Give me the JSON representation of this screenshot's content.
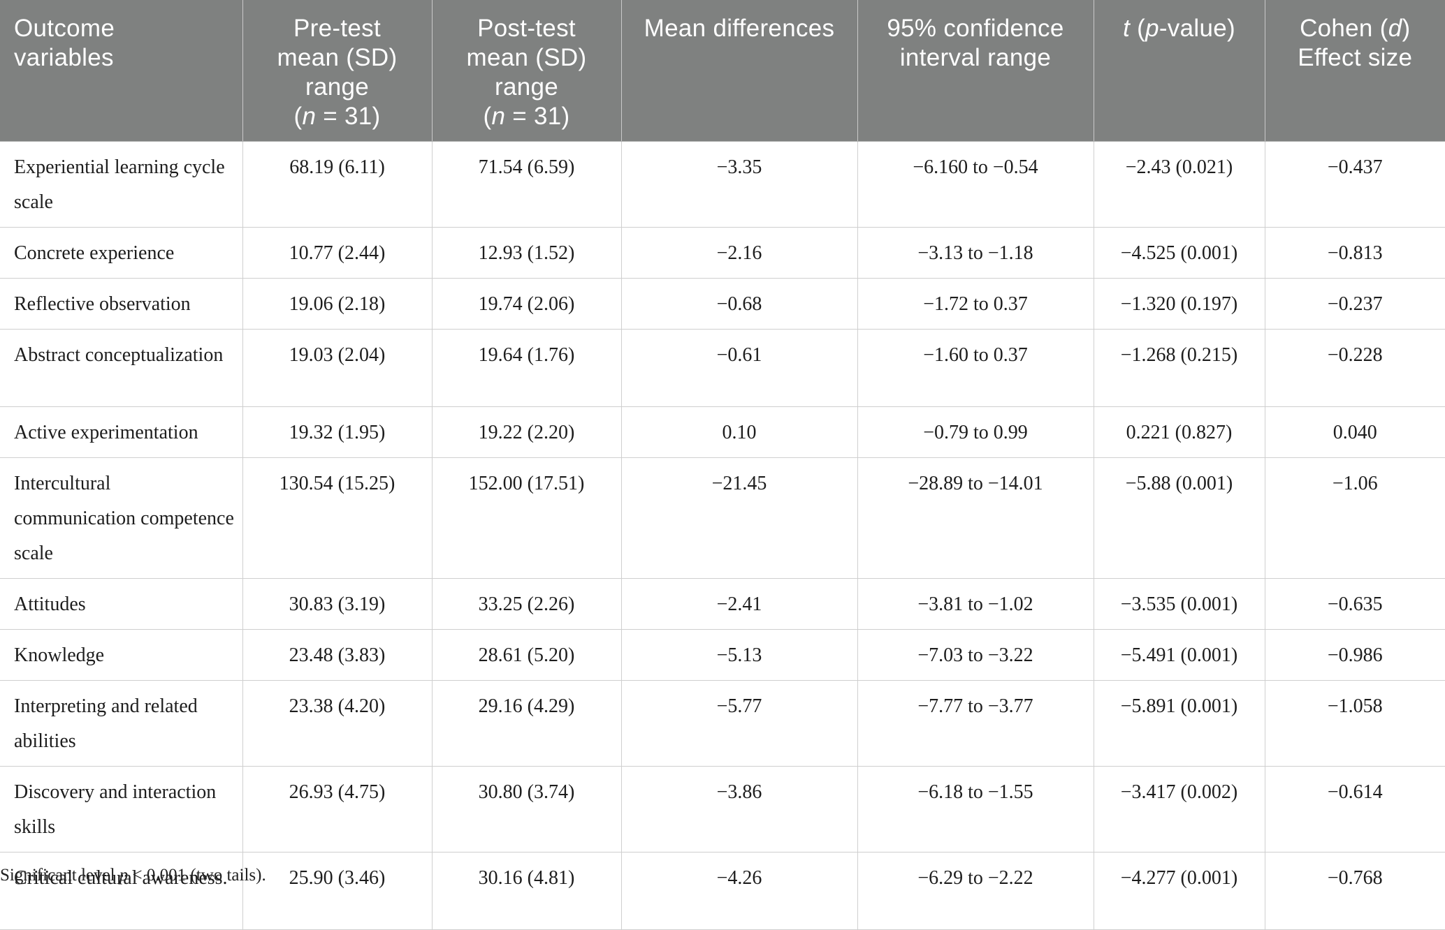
{
  "table": {
    "headers": [
      {
        "line1": "Outcome",
        "line2": "variables",
        "line3": "",
        "n_label": ""
      },
      {
        "line1": "Pre-test",
        "line2": "mean (SD)",
        "line3": "range",
        "n_label": "(n = 31)"
      },
      {
        "line1": "Post-test",
        "line2": "mean (SD)",
        "line3": "range",
        "n_label": "(n = 31)"
      },
      {
        "line1": "Mean differences",
        "line2": "",
        "line3": "",
        "n_label": ""
      },
      {
        "line1": "95% confidence",
        "line2": "interval range",
        "line3": "",
        "n_label": ""
      },
      {
        "line1": "t (p-value)",
        "line2": "",
        "line3": "",
        "n_label": ""
      },
      {
        "line1": "Cohen (d)",
        "line2": "Effect size",
        "line3": "",
        "n_label": ""
      }
    ],
    "rows": [
      {
        "variable": "Experiential learning cycle scale",
        "pre": "68.19 (6.11)",
        "post": "71.54 (6.59)",
        "diff": "−3.35",
        "ci": "−6.160 to −0.54",
        "t": "−2.43 (0.021)",
        "d": "−0.437"
      },
      {
        "variable": "Concrete experience",
        "pre": "10.77 (2.44)",
        "post": "12.93 (1.52)",
        "diff": "−2.16",
        "ci": "−3.13 to −1.18",
        "t": "−4.525 (0.001)",
        "d": "−0.813"
      },
      {
        "variable": "Reflective observation",
        "pre": "19.06 (2.18)",
        "post": "19.74 (2.06)",
        "diff": "−0.68",
        "ci": "−1.72 to 0.37",
        "t": "−1.320 (0.197)",
        "d": "−0.237"
      },
      {
        "variable": "Abstract conceptualization",
        "pre": "19.03 (2.04)",
        "post": "19.64 (1.76)",
        "diff": "−0.61",
        "ci": "−1.60 to 0.37",
        "t": "−1.268 (0.215)",
        "d": "−0.228"
      },
      {
        "variable": "Active experimentation",
        "pre": "19.32 (1.95)",
        "post": "19.22 (2.20)",
        "diff": "0.10",
        "ci": "−0.79 to 0.99",
        "t": "0.221 (0.827)",
        "d": "0.040"
      },
      {
        "variable": "Intercultural communication competence scale",
        "pre": "130.54 (15.25)",
        "post": "152.00 (17.51)",
        "diff": "−21.45",
        "ci": "−28.89 to −14.01",
        "t": "−5.88 (0.001)",
        "d": "−1.06"
      },
      {
        "variable": "Attitudes",
        "pre": "30.83 (3.19)",
        "post": "33.25 (2.26)",
        "diff": "−2.41",
        "ci": "−3.81 to −1.02",
        "t": "−3.535 (0.001)",
        "d": "−0.635"
      },
      {
        "variable": "Knowledge",
        "pre": "23.48 (3.83)",
        "post": "28.61 (5.20)",
        "diff": "−5.13",
        "ci": "−7.03 to −3.22",
        "t": "−5.491 (0.001)",
        "d": "−0.986"
      },
      {
        "variable": "Interpreting and related abilities",
        "pre": "23.38 (4.20)",
        "post": "29.16 (4.29)",
        "diff": "−5.77",
        "ci": "−7.77 to −3.77",
        "t": "−5.891 (0.001)",
        "d": "−1.058"
      },
      {
        "variable": "Discovery and interaction skills",
        "pre": "26.93 (4.75)",
        "post": "30.80 (3.74)",
        "diff": "−3.86",
        "ci": "−6.18 to −1.55",
        "t": "−3.417 (0.002)",
        "d": "−0.614"
      },
      {
        "variable": "Critical cultural awareness.",
        "pre": "25.90 (3.46)",
        "post": "30.16 (4.81)",
        "diff": "−4.26",
        "ci": "−6.29 to −2.22",
        "t": "−4.277 (0.001)",
        "d": "−0.768"
      }
    ]
  },
  "footnote": "Significant level p < 0.001 (two tails).",
  "colors": {
    "header_bg": "#7f8180",
    "header_text": "#ffffff",
    "grid": "#cfcfcf"
  }
}
